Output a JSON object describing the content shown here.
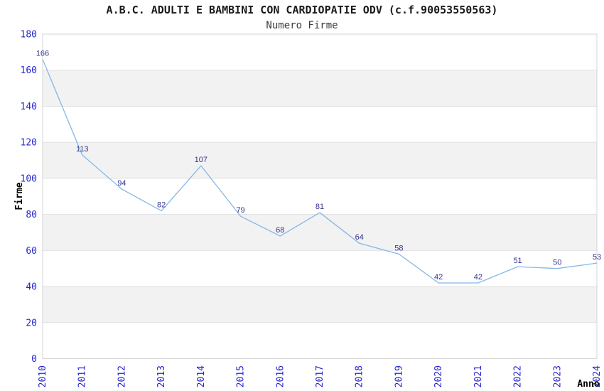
{
  "header": {
    "title": "A.B.C. ADULTI E BAMBINI CON CARDIOPATIE ODV (c.f.90053550563)",
    "subtitle": "Numero Firme"
  },
  "chart_data": {
    "type": "line",
    "title": "A.B.C. ADULTI E BAMBINI CON CARDIOPATIE ODV (c.f.90053550563)",
    "subtitle": "Numero Firme",
    "xlabel": "Anno",
    "ylabel": "Firme",
    "x": [
      "2010",
      "2011",
      "2012",
      "2013",
      "2014",
      "2015",
      "2016",
      "2017",
      "2018",
      "2019",
      "2020",
      "2021",
      "2022",
      "2023",
      "2024"
    ],
    "values": [
      166,
      113,
      94,
      82,
      107,
      79,
      68,
      81,
      64,
      58,
      42,
      42,
      51,
      50,
      53
    ],
    "ylim": [
      0,
      180
    ],
    "ytick_step": 20,
    "yticks": [
      0,
      20,
      40,
      60,
      80,
      100,
      120,
      140,
      160,
      180
    ],
    "grid": "alternating-horizontal-bands",
    "band_ranges": [
      [
        20,
        40
      ],
      [
        60,
        80
      ],
      [
        100,
        120
      ],
      [
        140,
        160
      ]
    ],
    "legend": "none",
    "point_labels_visible": true,
    "colors": {
      "line": "#85b7e8",
      "band": "#f2f2f2",
      "band_edge": "#e0e0e0",
      "frame": "#d4d4d4",
      "tick_label": "#2525d2",
      "point_label": "#32328e",
      "title": "#1a1a1a",
      "subtitle": "#3c3c3c",
      "axis_label": "#000000",
      "background": "#ffffff"
    }
  }
}
